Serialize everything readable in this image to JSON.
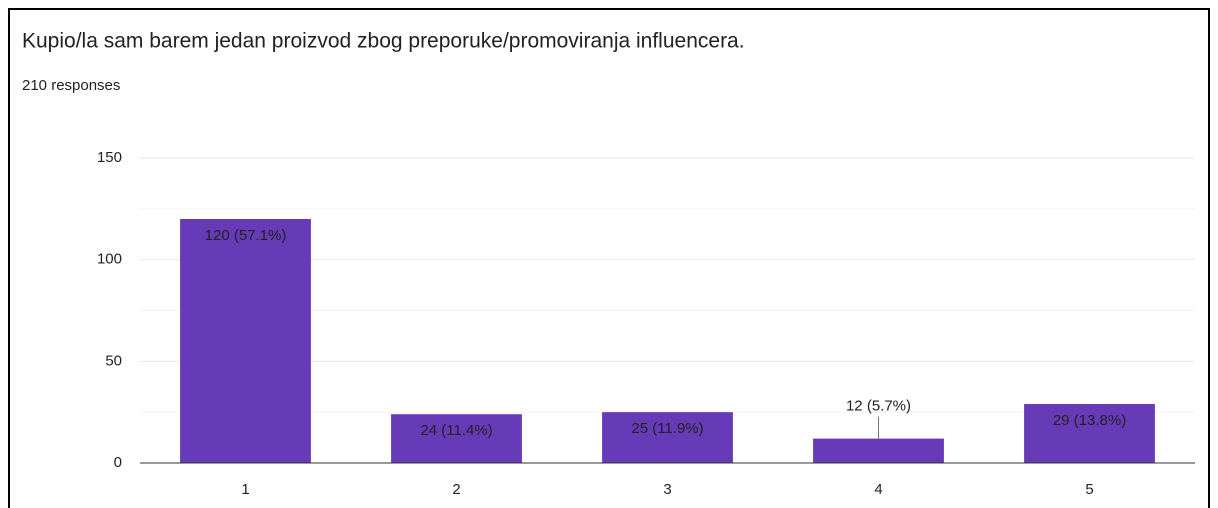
{
  "chart_data": {
    "type": "bar",
    "title": "Kupio/la sam barem jedan proizvod zbog preporuke/promoviranja influencera.",
    "subtitle": "210 responses",
    "categories": [
      "1",
      "2",
      "3",
      "4",
      "5"
    ],
    "values": [
      120,
      24,
      25,
      12,
      29
    ],
    "value_labels": [
      "120 (57.1%)",
      "24 (11.4%)",
      "25 (11.9%)",
      "12 (5.7%)",
      "29 (13.8%)"
    ],
    "color": "#673ab7",
    "ylim": [
      0,
      150
    ],
    "yticks": [
      0,
      50,
      100,
      150
    ],
    "minor_yticks": [
      25,
      75,
      125
    ],
    "grid": true
  }
}
